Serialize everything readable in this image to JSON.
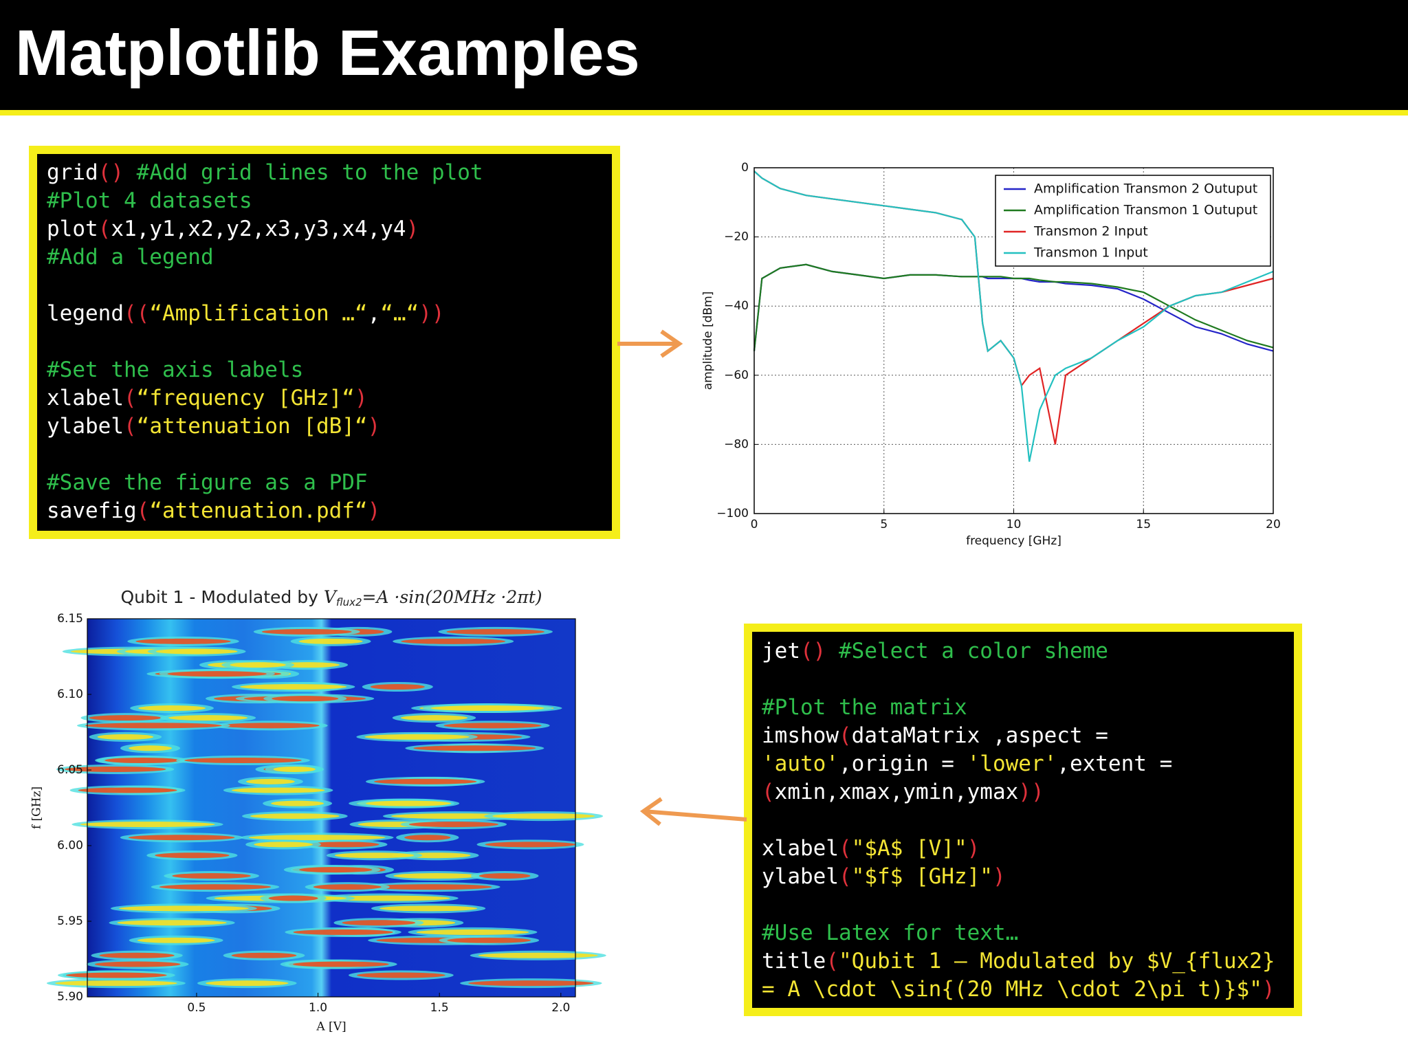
{
  "header": {
    "title": "Matplotlib Examples"
  },
  "code_blocks": [
    {
      "paragraphs": [
        [
          "grid() #Add grid lines to the plot",
          "#Plot 4 datasets",
          "plot(x1,y1,x2,y2,x3,y3,x4,y4)",
          "#Add a legend"
        ],
        [
          "legend((“Amplification …“,“…“))"
        ],
        [
          "#Set the axis labels",
          "xlabel(“frequency [GHz]“)",
          "ylabel(“attenuation [dB]“)"
        ],
        [
          "#Save the figure as a PDF",
          "savefig(“attenuation.pdf“)"
        ]
      ]
    },
    {
      "paragraphs": [
        [
          "jet() #Select a color sheme"
        ],
        [
          "#Plot the matrix",
          "imshow(dataMatrix ,aspect =",
          "'auto',origin = 'lower',extent =",
          "(xmin,xmax,ymin,ymax))"
        ],
        [
          "xlabel(\"$A$ [V]\")",
          "ylabel(\"$f$ [GHz]\")"
        ],
        [
          "#Use Latex for text…",
          "title(\"Qubit 1 – Modulated by $V_{flux2}",
          "= A \\cdot \\sin{(20 MHz \\cdot 2\\pi t)}$\")"
        ]
      ]
    }
  ],
  "chart_data": [
    {
      "type": "line",
      "xlabel": "frequency [GHz]",
      "ylabel": "amplitude [dBm]",
      "x": [
        0,
        0.3,
        1,
        2,
        3,
        4,
        5,
        6,
        7,
        8,
        8.5,
        8.8,
        9,
        9.5,
        10,
        10.3,
        10.6,
        11,
        11.6,
        12,
        13,
        14,
        15,
        16,
        17,
        18,
        19,
        20
      ],
      "series": [
        {
          "name": "Amplification Transmon 2 Outuput",
          "color": "#2424c8",
          "values": [
            -53,
            -32,
            -29,
            -28,
            -30,
            -31,
            -32,
            -31,
            -31,
            -31.5,
            -31.5,
            -31.5,
            -32,
            -32,
            -32,
            -32,
            -32.5,
            -33,
            -33,
            -33.5,
            -34,
            -35,
            -38,
            -42,
            -46,
            -48,
            -51,
            -53
          ]
        },
        {
          "name": "Amplification Transmon 1 Outuput",
          "color": "#1f7a1f",
          "values": [
            -53,
            -32,
            -29,
            -28,
            -30,
            -31,
            -32,
            -31,
            -31,
            -31.5,
            -31.5,
            -31.5,
            -31.5,
            -31.5,
            -32,
            -32,
            -32,
            -32.5,
            -33,
            -33,
            -33.5,
            -34.5,
            -36,
            -40,
            -44,
            -47,
            -50,
            -52
          ]
        },
        {
          "name": "Transmon 2 Input",
          "color": "#e02424",
          "values": [
            -1,
            -3,
            -6,
            -8,
            -9,
            -10,
            -11,
            -12,
            -13,
            -15,
            -20,
            -45,
            -53,
            -50,
            -55,
            -63,
            -60,
            -58,
            -80,
            -60,
            -55,
            -50,
            -45,
            -40,
            -37,
            -36,
            -34,
            -32
          ]
        },
        {
          "name": "Transmon 1 Input",
          "color": "#22c0c0",
          "values": [
            -1,
            -3,
            -6,
            -8,
            -9,
            -10,
            -11,
            -12,
            -13,
            -15,
            -20,
            -45,
            -53,
            -50,
            -55,
            -63,
            -85,
            -70,
            -60,
            -58,
            -55,
            -50,
            -46,
            -40,
            -37,
            -36,
            -33,
            -30
          ]
        }
      ],
      "xlim": [
        0,
        20
      ],
      "ylim": [
        -100,
        0
      ],
      "xticks": [
        0,
        5,
        10,
        15,
        20
      ],
      "yticks": [
        {
          "value": -100,
          "label": "−100"
        },
        {
          "value": -80,
          "label": "−80"
        },
        {
          "value": -60,
          "label": "−60"
        },
        {
          "value": -40,
          "label": "−40"
        },
        {
          "value": -20,
          "label": "−20"
        },
        0
      ],
      "grid": true,
      "legend": "upper right"
    },
    {
      "type": "heatmap",
      "title_parts": [
        "Qubit 1 - Modulated by ",
        "V",
        "flux2",
        "=A ·sin(20MHz ·2πt)"
      ],
      "xlabel": "A [V]",
      "ylabel": "f [GHz]",
      "xlim": [
        0.05,
        2.06
      ],
      "ylim": [
        5.9,
        6.15
      ],
      "xticks": [
        0.5,
        {
          "value": 1,
          "label": "1.0"
        },
        1.5,
        {
          "value": 2,
          "label": "2.0"
        }
      ],
      "yticks": [
        {
          "value": 5.9,
          "label": "5.90"
        },
        5.95,
        {
          "value": 6,
          "label": "6.00"
        },
        6.05,
        {
          "value": 6.1,
          "label": "6.10"
        },
        6.15
      ],
      "colormap": "jet"
    }
  ]
}
